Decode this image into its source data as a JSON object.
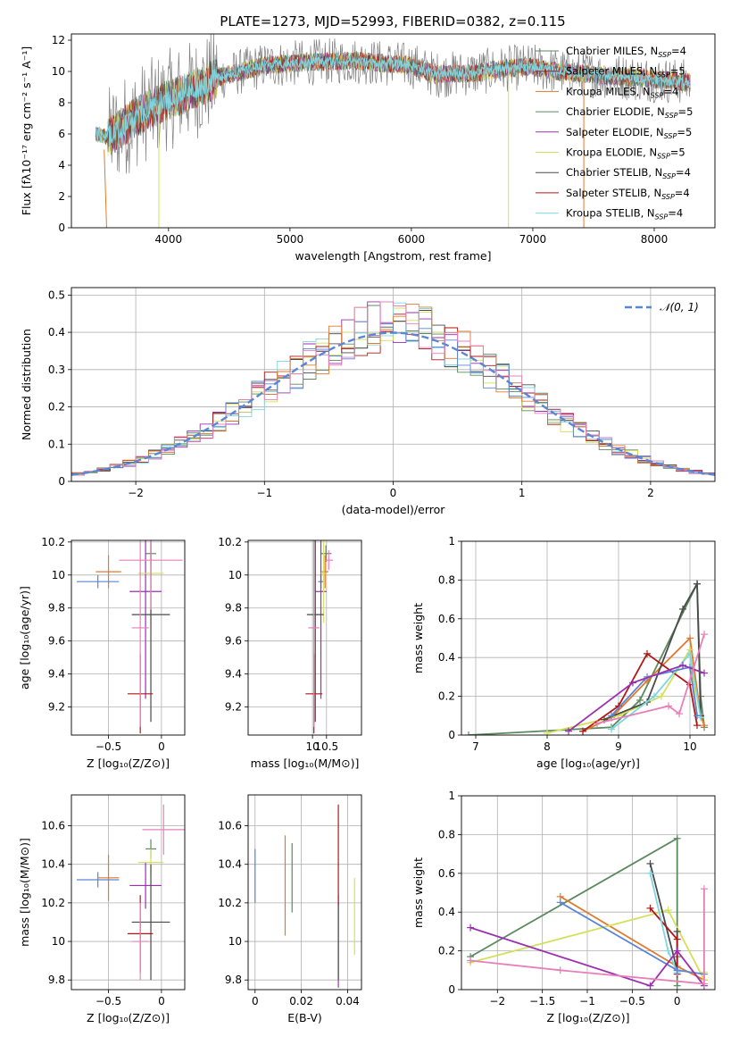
{
  "figure_title": "PLATE=1273, MJD=52993, FIBERID=0382, z=0.115",
  "colors": [
    "#5b8a5f",
    "#9b2fb0",
    "#d4e05a",
    "#4a4a4a",
    "#b01818",
    "#7fd6e0",
    "#e07a2e",
    "#5a86d6",
    "#e87fb9",
    "#808080"
  ],
  "chart_data": [
    {
      "id": "spectrum",
      "type": "line",
      "title": "PLATE=1273, MJD=52993, FIBERID=0382, z=0.115",
      "xlabel": "wavelength [Angstrom, rest frame]",
      "ylabel": "Flux [fλ10⁻¹⁷ erg cm⁻² s⁻¹ A⁻¹]",
      "xlim": [
        3200,
        8500
      ],
      "ylim": [
        0,
        12.4
      ],
      "xticks": [
        4000,
        5000,
        6000,
        7000,
        8000
      ],
      "yticks": [
        0,
        2,
        4,
        6,
        8,
        10,
        12
      ],
      "grid": false,
      "legend_position": "right",
      "legend": [
        "Chabrier MILES, N_SSP=4",
        "Salpeter MILES, N_SSP=5",
        "Kroupa MILES, N_SSP=4",
        "Chabrier ELODIE, N_SSP=5",
        "Salpeter ELODIE, N_SSP=5",
        "Kroupa ELODIE, N_SSP=5",
        "Chabrier STELIB, N_SSP=4",
        "Salpeter STELIB, N_SSP=4",
        "Kroupa STELIB, N_SSP=4"
      ],
      "envelope": {
        "x": [
          3400,
          3500,
          3600,
          3700,
          3800,
          4000,
          4200,
          4400,
          4600,
          4800,
          5000,
          5200,
          5500,
          5800,
          6000,
          6200,
          6500,
          6800,
          7000,
          7200,
          7500,
          7800,
          8000,
          8300
        ],
        "y": [
          6.0,
          5.8,
          6.3,
          6.9,
          7.4,
          8.2,
          8.8,
          9.6,
          10.0,
          10.4,
          10.5,
          10.6,
          10.7,
          10.5,
          10.4,
          9.8,
          9.9,
          10.2,
          10.3,
          10.0,
          9.8,
          9.6,
          9.5,
          9.3
        ]
      }
    },
    {
      "id": "residuals",
      "type": "line",
      "xlabel": "(data-model)/error",
      "ylabel": "Normed distribution",
      "xlim": [
        -2.5,
        2.5
      ],
      "ylim": [
        0,
        0.52
      ],
      "xticks": [
        -2,
        -1,
        0,
        1,
        2
      ],
      "yticks": [
        0.0,
        0.1,
        0.2,
        0.3,
        0.4,
        0.5
      ],
      "grid": true,
      "legend": [
        "𝒩(0, 1)"
      ],
      "legend_position": "top-right"
    },
    {
      "id": "age_vs_Z",
      "type": "scatter",
      "xlabel": "Z [log₁₀(Z/Z⊙)]",
      "ylabel": "age  [log₁₀(age/yr)]",
      "xlim": [
        -0.85,
        0.22
      ],
      "ylim": [
        9.03,
        10.21
      ],
      "xticks": [
        -0.5,
        0.0
      ],
      "yticks": [
        9.2,
        9.4,
        9.6,
        9.8,
        10.0,
        10.2
      ],
      "grid": true,
      "points": [
        {
          "x": -0.1,
          "y": 10.13,
          "xerr": 0.05,
          "yerr": 0.07
        },
        {
          "x": -0.5,
          "y": 10.02,
          "xerr": 0.12,
          "yerr": 0.1
        },
        {
          "x": -0.6,
          "y": 9.96,
          "xerr": 0.2,
          "yerr": 0.04
        },
        {
          "x": -0.15,
          "y": 9.9,
          "xerr": 0.15,
          "yerr": 0.65
        },
        {
          "x": -0.1,
          "y": 10.01,
          "xerr": 0.12,
          "yerr": 0.3
        },
        {
          "x": -0.1,
          "y": 9.76,
          "xerr": 0.18,
          "yerr": 0.65
        },
        {
          "x": -0.2,
          "y": 9.28,
          "xerr": 0.12,
          "yerr": 0.24
        },
        {
          "x": -0.2,
          "y": 9.68,
          "xerr": 0.08,
          "yerr": 0.6
        },
        {
          "x": -0.1,
          "y": 10.09,
          "xerr": 0.3,
          "yerr": 0.3
        }
      ]
    },
    {
      "id": "age_vs_mass",
      "type": "scatter",
      "xlabel": "mass [log₁₀(M/M⊙)]",
      "xlim": [
        7.7,
        11.75
      ],
      "ylim": [
        9.03,
        10.21
      ],
      "xticks": [
        10.0,
        10.5
      ],
      "yticks": [
        9.2,
        9.4,
        9.6,
        9.8,
        10.0,
        10.2
      ],
      "grid": true,
      "points": [
        {
          "x": 10.48,
          "y": 10.13,
          "xerr": 0.2,
          "yerr": 0.05
        },
        {
          "x": 10.45,
          "y": 10.02,
          "xerr": 0.12,
          "yerr": 0.1
        },
        {
          "x": 10.3,
          "y": 9.96,
          "xerr": 0.1,
          "yerr": 0.04
        },
        {
          "x": 10.3,
          "y": 9.9,
          "xerr": 0.2,
          "yerr": 0.65
        },
        {
          "x": 10.4,
          "y": 10.01,
          "xerr": 0.1,
          "yerr": 0.3
        },
        {
          "x": 10.1,
          "y": 9.76,
          "xerr": 0.3,
          "yerr": 0.65
        },
        {
          "x": 10.05,
          "y": 9.28,
          "xerr": 0.3,
          "yerr": 0.24
        },
        {
          "x": 10.05,
          "y": 9.68,
          "xerr": 0.2,
          "yerr": 0.6
        },
        {
          "x": 10.58,
          "y": 10.09,
          "xerr": 0.15,
          "yerr": 0.06
        }
      ]
    },
    {
      "id": "massweight_vs_age",
      "type": "line",
      "xlabel": "age  [log₁₀(age/yr)]",
      "ylabel": "mass weight",
      "xlim": [
        6.8,
        10.35
      ],
      "ylim": [
        0,
        1.0
      ],
      "xticks": [
        7,
        8,
        9,
        10
      ],
      "yticks": [
        0.0,
        0.2,
        0.4,
        0.6,
        0.8,
        1.0
      ],
      "grid": true,
      "series": [
        {
          "x": [
            6.9,
            8.9,
            9.3,
            10.1,
            10.15,
            10.2
          ],
          "y": [
            0.0,
            0.04,
            0.18,
            0.78,
            0.2,
            0.04
          ]
        },
        {
          "x": [
            8.5,
            8.9,
            9.4,
            10.0,
            10.15,
            10.2
          ],
          "y": [
            0.02,
            0.09,
            0.28,
            0.5,
            0.1,
            0.05
          ]
        },
        {
          "x": [
            8.0,
            9.0,
            9.6,
            10.0,
            10.1
          ],
          "y": [
            0.01,
            0.1,
            0.2,
            0.44,
            0.1
          ]
        },
        {
          "x": [
            8.8,
            9.4,
            9.9,
            10.1,
            10.15
          ],
          "y": [
            0.08,
            0.17,
            0.65,
            0.78,
            0.1
          ]
        },
        {
          "x": [
            8.5,
            9.0,
            9.4,
            10.0,
            10.1
          ],
          "y": [
            0.02,
            0.15,
            0.42,
            0.26,
            0.05
          ]
        },
        {
          "x": [
            8.9,
            9.5,
            10.0,
            10.15
          ],
          "y": [
            0.03,
            0.2,
            0.42,
            0.09
          ]
        },
        {
          "x": [
            8.9,
            9.4,
            10.0,
            10.1
          ],
          "y": [
            0.1,
            0.3,
            0.35,
            0.1
          ]
        },
        {
          "x": [
            8.3,
            9.2,
            9.9,
            10.2
          ],
          "y": [
            0.02,
            0.27,
            0.36,
            0.32
          ]
        },
        {
          "x": [
            8.7,
            9.7,
            9.85,
            10.2
          ],
          "y": [
            0.06,
            0.15,
            0.11,
            0.52
          ]
        }
      ]
    },
    {
      "id": "mass_vs_Z",
      "type": "scatter",
      "xlabel": "Z [log₁₀(Z/Z⊙)]",
      "ylabel": "mass [log₁₀(M/M⊙)]",
      "xlim": [
        -0.85,
        0.22
      ],
      "ylim": [
        9.75,
        10.76
      ],
      "xticks": [
        -0.5,
        0.0
      ],
      "yticks": [
        9.8,
        10.0,
        10.2,
        10.4,
        10.6
      ],
      "grid": true,
      "points": [
        {
          "x": -0.1,
          "y": 10.48,
          "xerr": 0.05,
          "yerr": 0.05
        },
        {
          "x": -0.5,
          "y": 10.33,
          "xerr": 0.1,
          "yerr": 0.12
        },
        {
          "x": -0.6,
          "y": 10.32,
          "xerr": 0.2,
          "yerr": 0.04
        },
        {
          "x": -0.15,
          "y": 10.29,
          "xerr": 0.15,
          "yerr": 0.12
        },
        {
          "x": -0.1,
          "y": 10.41,
          "xerr": 0.12,
          "yerr": 0.07
        },
        {
          "x": -0.1,
          "y": 10.1,
          "xerr": 0.18,
          "yerr": 0.3
        },
        {
          "x": -0.2,
          "y": 10.04,
          "xerr": 0.12,
          "yerr": 0.2
        },
        {
          "x": -0.2,
          "y": 10.0,
          "xerr": 0.08,
          "yerr": 0.2
        },
        {
          "x": 0.02,
          "y": 10.58,
          "xerr": 0.2,
          "yerr": 0.13
        }
      ]
    },
    {
      "id": "mass_vs_ebv",
      "type": "scatter",
      "xlabel": "E(B-V)",
      "xlim": [
        -0.003,
        0.046
      ],
      "ylim": [
        9.75,
        10.76
      ],
      "xticks": [
        0.0,
        0.02,
        0.04
      ],
      "yticks": [
        9.8,
        10.0,
        10.2,
        10.4,
        10.6
      ],
      "grid": true,
      "points": [
        {
          "x": 0.016,
          "y": 10.33,
          "yerr": 0.18
        },
        {
          "x": 0.013,
          "y": 10.29,
          "yerr": 0.26
        },
        {
          "x": 0.0,
          "y": 10.34,
          "yerr": 0.14
        },
        {
          "x": 0.036,
          "y": 10.0,
          "yerr": 0.24
        },
        {
          "x": 0.043,
          "y": 10.13,
          "yerr": 0.2
        },
        {
          "x": 0.036,
          "y": 10.0,
          "yerr": 0.2
        },
        {
          "x": 0.036,
          "y": 10.45,
          "yerr": 0.26
        }
      ]
    },
    {
      "id": "massweight_vs_Z",
      "type": "line",
      "xlabel": "Z [log₁₀(Z/Z⊙)]",
      "ylabel": "mass weight",
      "xlim": [
        -2.4,
        0.42
      ],
      "ylim": [
        0,
        1.0
      ],
      "xticks": [
        -2.0,
        -1.5,
        -1.0,
        -0.5,
        0.0
      ],
      "yticks": [
        0.0,
        0.2,
        0.4,
        0.6,
        0.8,
        1.0
      ],
      "grid": true,
      "series": [
        {
          "x": [
            -2.3,
            0.0,
            0.0,
            0.0
          ],
          "y": [
            0.17,
            0.78,
            0.02,
            0.17
          ]
        },
        {
          "x": [
            -1.3,
            0.0,
            0.3
          ],
          "y": [
            0.48,
            0.12,
            0.05
          ]
        },
        {
          "x": [
            -2.3,
            -0.1,
            0.3,
            0.3
          ],
          "y": [
            0.14,
            0.41,
            0.05,
            0.09
          ]
        },
        {
          "x": [
            -0.3,
            0.0,
            0.0
          ],
          "y": [
            0.65,
            0.1,
            0.3
          ]
        },
        {
          "x": [
            -0.3,
            0.0,
            0.0
          ],
          "y": [
            0.42,
            0.26,
            0.08
          ]
        },
        {
          "x": [
            -0.3,
            -0.1,
            0.0
          ],
          "y": [
            0.6,
            0.2,
            0.09
          ]
        },
        {
          "x": [
            -1.3,
            0.0,
            0.3
          ],
          "y": [
            0.45,
            0.1,
            0.08
          ]
        },
        {
          "x": [
            -2.3,
            -0.3,
            0.0,
            0.3
          ],
          "y": [
            0.32,
            0.02,
            0.2,
            0.02
          ]
        },
        {
          "x": [
            -2.3,
            -1.3,
            0.3,
            0.3
          ],
          "y": [
            0.15,
            0.1,
            0.03,
            0.52
          ]
        }
      ]
    }
  ]
}
